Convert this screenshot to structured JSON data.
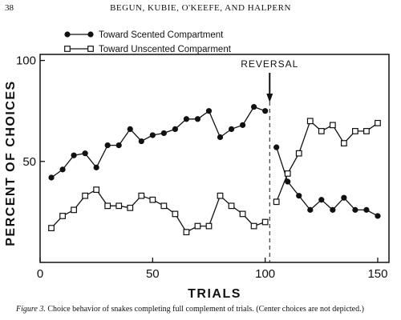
{
  "header": {
    "page_number": "38",
    "authors": "BEGUN, KUBIE, O'KEEFE, AND HALPERN"
  },
  "caption": {
    "label": "Figure 3.",
    "text": "Choice behavior of snakes completing full complement of trials. (Center choices are not depicted.)"
  },
  "chart_data": {
    "type": "line",
    "title": "",
    "xlabel": "TRIALS",
    "ylabel": "PERCENT OF CHOICES",
    "xlim": [
      0,
      155
    ],
    "ylim": [
      0,
      103
    ],
    "x_ticks": [
      0,
      50,
      100,
      150
    ],
    "y_ticks": [
      50,
      100
    ],
    "grid": false,
    "legend_position": "top-left",
    "annotation": {
      "label": "REVERSAL",
      "x": 102
    },
    "series": [
      {
        "name": "Toward Scented Compartment",
        "marker": "filled-circle",
        "segments": [
          {
            "x": [
              5,
              10,
              15,
              20,
              25,
              30,
              35,
              40,
              45,
              50,
              55,
              60,
              65,
              70,
              75,
              80,
              85,
              90,
              95,
              100
            ],
            "y": [
              42,
              46,
              53,
              54,
              47,
              58,
              58,
              66,
              60,
              63,
              64,
              66,
              71,
              71,
              75,
              62,
              66,
              68,
              77,
              75
            ]
          },
          {
            "x": [
              105,
              110,
              115,
              120,
              125,
              130,
              135,
              140,
              145,
              150
            ],
            "y": [
              57,
              40,
              33,
              26,
              31,
              26,
              32,
              26,
              26,
              23
            ]
          }
        ]
      },
      {
        "name": "Toward Unscented Comparment",
        "marker": "open-square",
        "segments": [
          {
            "x": [
              5,
              10,
              15,
              20,
              25,
              30,
              35,
              40,
              45,
              50,
              55,
              60,
              65,
              70,
              75,
              80,
              85,
              90,
              95,
              100
            ],
            "y": [
              17,
              23,
              26,
              33,
              36,
              28,
              28,
              27,
              33,
              31,
              28,
              24,
              15,
              18,
              18,
              33,
              28,
              24,
              18,
              20
            ]
          },
          {
            "x": [
              105,
              110,
              115,
              120,
              125,
              130,
              135,
              140,
              145,
              150
            ],
            "y": [
              30,
              44,
              54,
              70,
              65,
              68,
              59,
              65,
              65,
              69
            ]
          }
        ]
      }
    ]
  }
}
